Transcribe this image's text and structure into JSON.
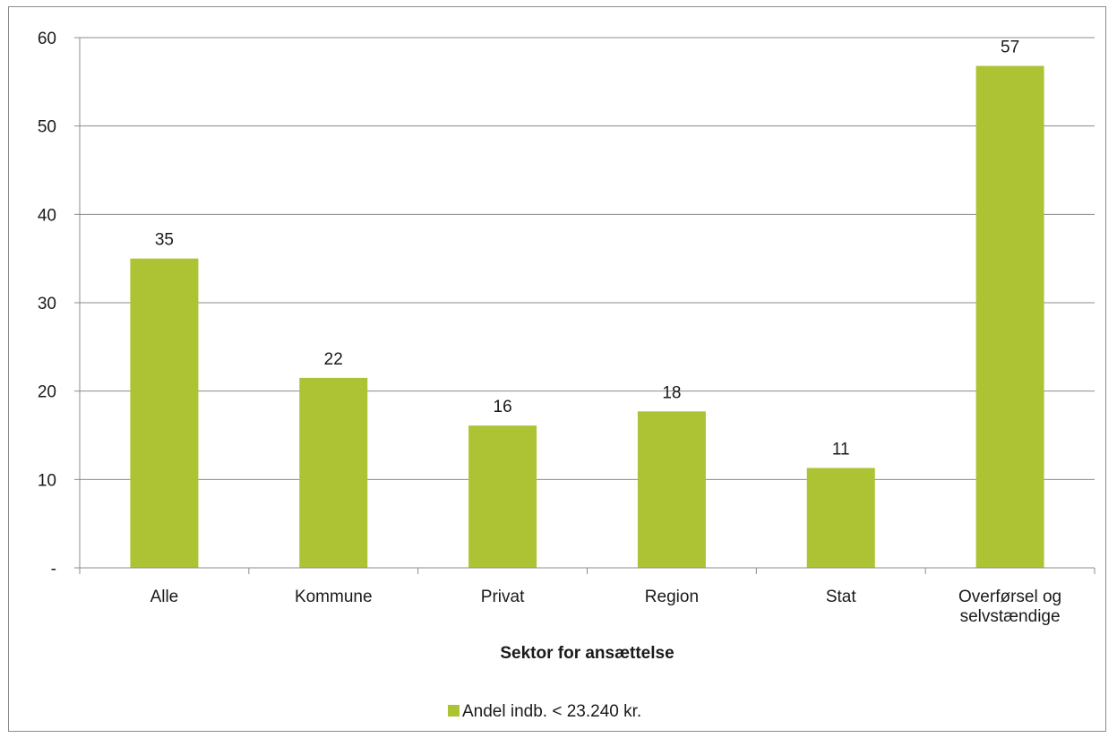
{
  "chart_data": {
    "type": "bar",
    "categories": [
      [
        "Alle"
      ],
      [
        "Kommune"
      ],
      [
        "Privat"
      ],
      [
        "Region"
      ],
      [
        "Stat"
      ],
      [
        "Overførsel og",
        "selvstændige"
      ]
    ],
    "series": [
      {
        "name": "Andel indb. < 23.240 kr.",
        "values": [
          35,
          21.5,
          16.1,
          17.7,
          11.3,
          56.8
        ],
        "labels": [
          "35",
          "22",
          "16",
          "18",
          "11",
          "57"
        ],
        "color": "#adc334"
      }
    ],
    "yticks": [
      "-",
      "10",
      "20",
      "30",
      "40",
      "50",
      "60"
    ],
    "ylim": [
      0,
      60
    ],
    "xlabel": "Sektor for ansættelse",
    "ylabel": "",
    "grid": true,
    "legend_position": "bottom",
    "colors": {
      "grid": "#8c8c8c",
      "axis": "#8c8c8c",
      "text": "#1a1a1a"
    }
  }
}
